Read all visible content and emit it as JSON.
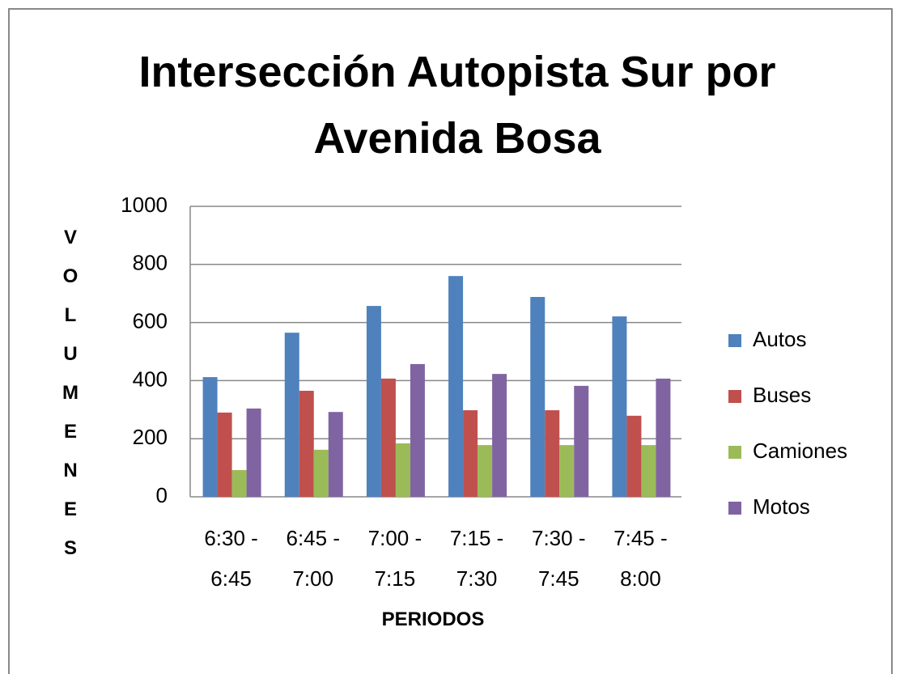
{
  "chart_data": {
    "type": "bar",
    "title": "Intersección Autopista Sur por Avenida Bosa",
    "x_label": "PERIODOS",
    "y_label": "VOLUMENES",
    "categories": [
      "6:30 - 6:45",
      "6:45 - 7:00",
      "7:00 - 7:15",
      "7:15 - 7:30",
      "7:30 - 7:45",
      "7:45 - 8:00"
    ],
    "series": [
      {
        "name": "Autos",
        "color": "#4f81bd",
        "values": [
          412,
          565,
          657,
          760,
          688,
          621
        ]
      },
      {
        "name": "Buses",
        "color": "#c0504d",
        "values": [
          290,
          365,
          407,
          298,
          298,
          279
        ]
      },
      {
        "name": "Camiones",
        "color": "#9bbb59",
        "values": [
          92,
          162,
          184,
          178,
          178,
          178
        ]
      },
      {
        "name": "Motos",
        "color": "#8064a2",
        "values": [
          304,
          292,
          457,
          423,
          382,
          407
        ]
      }
    ],
    "ylim": [
      0,
      1000
    ],
    "yticks": [
      0,
      200,
      400,
      600,
      800,
      1000
    ],
    "grid": true,
    "legend": "right"
  }
}
